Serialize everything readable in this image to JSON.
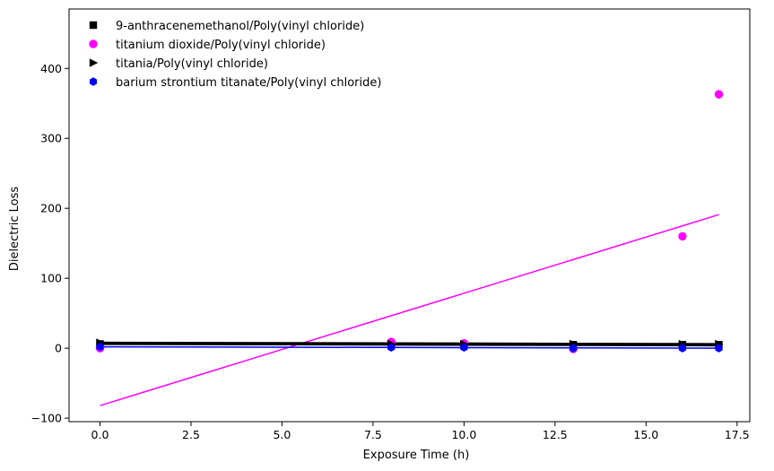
{
  "chart_data": {
    "type": "scatter",
    "title": "",
    "xlabel": "Exposure Time (h)",
    "ylabel": "Dielectric Loss",
    "xlim": [
      -0.85,
      17.85
    ],
    "ylim": [
      -105,
      485
    ],
    "xticks": [
      0.0,
      2.5,
      5.0,
      7.5,
      10.0,
      12.5,
      15.0,
      17.5
    ],
    "xtick_labels": [
      "0.0",
      "2.5",
      "5.0",
      "7.5",
      "10.0",
      "12.5",
      "15.0",
      "17.5"
    ],
    "yticks": [
      -100,
      0,
      100,
      200,
      300,
      400
    ],
    "ytick_labels": [
      "−100",
      "0",
      "100",
      "200",
      "300",
      "400"
    ],
    "grid": false,
    "legend_position": "top-left",
    "series": [
      {
        "name": "9-anthracenemethanol/Poly(vinyl chloride)",
        "marker": "square",
        "color": "#000000",
        "x": [
          0,
          8,
          10,
          13,
          16,
          17
        ],
        "y": [
          6,
          5,
          5,
          5,
          5,
          5
        ],
        "fit": {
          "x": [
            0,
            17
          ],
          "y": [
            6.5,
            4.5
          ],
          "width": 3
        }
      },
      {
        "name": "titanium dioxide/Poly(vinyl chloride)",
        "marker": "circle",
        "color": "#ff00ff",
        "x": [
          0,
          8,
          10,
          13,
          16,
          17
        ],
        "y": [
          0,
          9,
          7,
          -1,
          160,
          363
        ],
        "fit": {
          "x": [
            0,
            17
          ],
          "y": [
            -82,
            191
          ],
          "width": 1.5
        }
      },
      {
        "name": "titania/Poly(vinyl chloride)",
        "marker": "triangle-right",
        "color": "#000000",
        "x": [
          0,
          8,
          10,
          13,
          16,
          17
        ],
        "y": [
          8,
          6,
          6,
          6,
          6,
          6
        ],
        "fit": {
          "x": [
            0,
            17
          ],
          "y": [
            7.5,
            5.5
          ],
          "width": 3
        }
      },
      {
        "name": "barium strontium titanate/Poly(vinyl chloride)",
        "marker": "hexagon",
        "color": "#0000ff",
        "x": [
          0,
          8,
          10,
          13,
          16,
          17
        ],
        "y": [
          2,
          1,
          1,
          0,
          0,
          0
        ],
        "fit": {
          "x": [
            0,
            17
          ],
          "y": [
            2,
            0
          ],
          "width": 1.5
        }
      }
    ]
  }
}
